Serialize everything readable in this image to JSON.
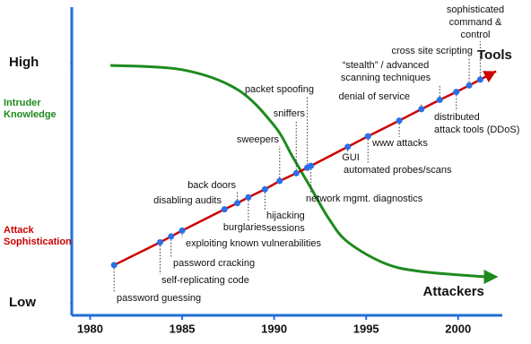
{
  "chart_data": {
    "type": "line",
    "xlim": [
      1979,
      2002.4
    ],
    "xticks": [
      1980,
      1985,
      1990,
      1995,
      2000
    ],
    "ylim": [
      0,
      100
    ],
    "yticks": [
      {
        "value": 4,
        "label": "Low"
      },
      {
        "value": 82,
        "label": "High"
      }
    ],
    "axis_color": "#1f6fd6",
    "marker_color": "#2a6fe8",
    "series": [
      {
        "name": "Attack Sophistication",
        "color": "#cc0000",
        "end_label": "Tools",
        "x": [
          1981.3,
          1983.8,
          1984.4,
          1985.0,
          1987.3,
          1988.0,
          1988.6,
          1989.5,
          1990.3,
          1991.2,
          1991.8,
          1992.0,
          1994.0,
          1995.1,
          1996.8,
          1998.0,
          1999.0,
          1999.9,
          2000.6,
          2001.2
        ],
        "values": [
          16.3,
          23.7,
          25.6,
          27.5,
          34.4,
          36.4,
          38.3,
          40.9,
          43.6,
          46.1,
          47.9,
          48.5,
          54.7,
          58.1,
          63.2,
          66.9,
          69.9,
          72.5,
          74.6,
          76.5
        ],
        "point_labels": [
          [
            "password guessing"
          ],
          [
            "self-replicating code"
          ],
          [
            "password cracking"
          ],
          [
            "exploiting known vulnerabilities"
          ],
          [
            "disabling audits"
          ],
          [
            "back doors"
          ],
          [
            "burglaries"
          ],
          [
            "hijacking",
            "sessions"
          ],
          [
            "sweepers"
          ],
          [
            "sniffers"
          ],
          [
            "packet spoofing"
          ],
          [
            "network mgmt. diagnostics"
          ],
          [
            "GUI"
          ],
          [
            "automated probes/scans"
          ],
          [
            "www attacks"
          ],
          [
            "denial of service"
          ],
          [
            "“stealth” / advanced",
            "scanning techniques"
          ],
          [
            "distributed",
            "attack tools (DDoS)"
          ],
          [
            "cross site scripting"
          ],
          [
            "sophisticated",
            "command &",
            "control"
          ]
        ]
      },
      {
        "name": "Intruder Knowledge",
        "color": "#1e8a1e",
        "end_label": "Attackers",
        "x": [
          1981.1,
          1985,
          1988,
          1990,
          1991,
          1992,
          1993,
          1994,
          1996,
          1998,
          2001.5
        ],
        "values": [
          81.1,
          79.7,
          73.3,
          61.6,
          51.5,
          41.3,
          31.1,
          23.8,
          16.9,
          14.2,
          12.5
        ]
      }
    ]
  }
}
